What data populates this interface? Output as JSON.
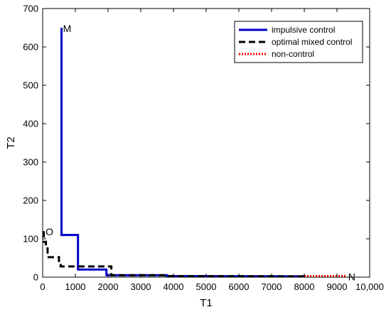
{
  "chart_data": {
    "type": "line",
    "xlabel": "T1",
    "ylabel": "T2",
    "xlim": [
      0,
      10000
    ],
    "ylim": [
      0,
      700
    ],
    "xticks": [
      0,
      1000,
      2000,
      3000,
      4000,
      5000,
      6000,
      7000,
      8000,
      9000,
      10000
    ],
    "xtick_labels": [
      "0",
      "1000",
      "2000",
      "3000",
      "4000",
      "5000",
      "6000",
      "7000",
      "8000",
      "9000",
      "10,000"
    ],
    "yticks": [
      0,
      100,
      200,
      300,
      400,
      500,
      600,
      700
    ],
    "ytick_labels": [
      "0",
      "100",
      "200",
      "300",
      "400",
      "500",
      "600",
      "700"
    ],
    "grid": false,
    "legend_position": "top-right",
    "series": [
      {
        "name": "impulsive control",
        "color": "#0000cc",
        "style": "solid",
        "points": [
          [
            575,
            650
          ],
          [
            575,
            110
          ],
          [
            1080,
            110
          ],
          [
            1080,
            20
          ],
          [
            1950,
            20
          ],
          [
            1950,
            5
          ],
          [
            3800,
            5
          ],
          [
            3800,
            3
          ],
          [
            8000,
            2
          ]
        ]
      },
      {
        "name": "optimal mixed control",
        "color": "#000000",
        "style": "dashed",
        "points": [
          [
            35,
            120
          ],
          [
            35,
            92
          ],
          [
            100,
            92
          ],
          [
            100,
            75
          ],
          [
            150,
            75
          ],
          [
            150,
            52
          ],
          [
            500,
            52
          ],
          [
            500,
            32
          ],
          [
            550,
            32
          ],
          [
            550,
            28
          ],
          [
            2100,
            28
          ],
          [
            2100,
            5
          ],
          [
            3800,
            5
          ],
          [
            3800,
            3
          ],
          [
            8000,
            2
          ]
        ]
      },
      {
        "name": "non-control",
        "color": "#ff0000",
        "style": "dotted",
        "points": [
          [
            8000,
            3
          ],
          [
            9300,
            3
          ]
        ]
      }
    ],
    "annotations": [
      {
        "text": "M",
        "x": 580,
        "y": 650
      },
      {
        "text": "O",
        "x": 45,
        "y": 120
      },
      {
        "text": "N",
        "x": 9300,
        "y": 3
      }
    ]
  }
}
